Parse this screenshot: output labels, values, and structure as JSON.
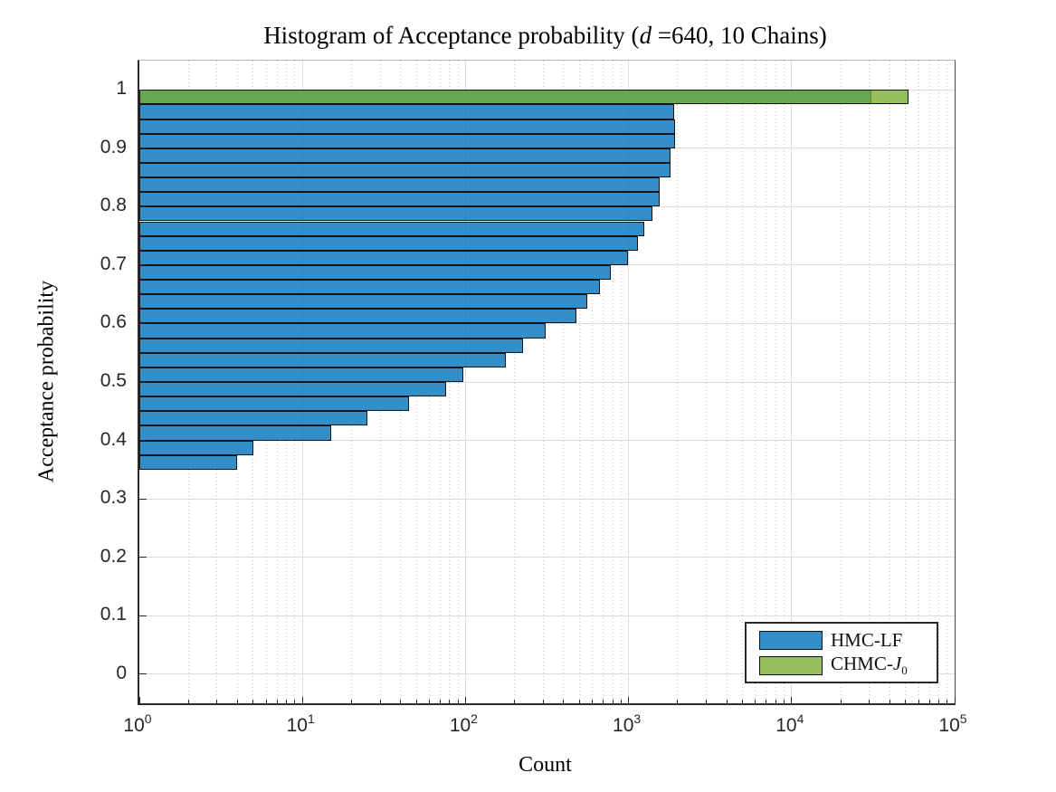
{
  "title": {
    "prefix": "Histogram of Acceptance probability (",
    "variable": "d",
    "suffix": " =640, 10 Chains)"
  },
  "axes": {
    "xlabel": "Count",
    "ylabel": "Acceptance probability",
    "x_tick_labels": [
      {
        "base": "10",
        "exponent": "0"
      },
      {
        "base": "10",
        "exponent": "1"
      },
      {
        "base": "10",
        "exponent": "2"
      },
      {
        "base": "10",
        "exponent": "3"
      },
      {
        "base": "10",
        "exponent": "4"
      },
      {
        "base": "10",
        "exponent": "5"
      }
    ],
    "y_tick_labels": [
      "0",
      "0.1",
      "0.2",
      "0.3",
      "0.4",
      "0.5",
      "0.6",
      "0.7",
      "0.8",
      "0.9",
      "1"
    ]
  },
  "legend": {
    "entry1_label": "HMC-LF",
    "entry2_prefix": "CHMC-",
    "entry2_variable": "J",
    "entry2_subscript": "0",
    "entry1_color": "rgba(0,114,189,0.80)",
    "entry2_color": "rgba(119,172,48,0.78)"
  },
  "chart_data": {
    "type": "bar",
    "orientation": "horizontal",
    "title": "Histogram of Acceptance probability (d =640, 10 Chains)",
    "xlabel": "Count",
    "ylabel": "Acceptance probability",
    "x_scale": "log10",
    "xlim": [
      1,
      100000
    ],
    "ylim": [
      -0.05,
      1.05
    ],
    "bin_width": 0.025,
    "grid": true,
    "minor_grid_x_dotted": true,
    "legend_position": "southeast",
    "x_major_ticks": [
      1,
      10,
      100,
      1000,
      10000,
      100000
    ],
    "y_major_ticks": [
      0,
      0.1,
      0.2,
      0.3,
      0.4,
      0.5,
      0.6,
      0.7,
      0.8,
      0.9,
      1
    ],
    "series": [
      {
        "name": "HMC-LF",
        "fill": "rgba(0,114,189,0.80)",
        "edge": "#141414",
        "bins": [
          {
            "y0": 0.975,
            "count": 31000
          },
          {
            "y0": 0.95,
            "count": 1900
          },
          {
            "y0": 0.925,
            "count": 1920
          },
          {
            "y0": 0.9,
            "count": 1920
          },
          {
            "y0": 0.875,
            "count": 1800
          },
          {
            "y0": 0.85,
            "count": 1800
          },
          {
            "y0": 0.825,
            "count": 1550
          },
          {
            "y0": 0.8,
            "count": 1550
          },
          {
            "y0": 0.775,
            "count": 1410
          },
          {
            "y0": 0.75,
            "count": 1250
          },
          {
            "y0": 0.725,
            "count": 1140
          },
          {
            "y0": 0.7,
            "count": 990
          },
          {
            "y0": 0.675,
            "count": 780
          },
          {
            "y0": 0.65,
            "count": 670
          },
          {
            "y0": 0.625,
            "count": 560
          },
          {
            "y0": 0.6,
            "count": 480
          },
          {
            "y0": 0.575,
            "count": 310
          },
          {
            "y0": 0.55,
            "count": 225
          },
          {
            "y0": 0.525,
            "count": 176
          },
          {
            "y0": 0.5,
            "count": 97
          },
          {
            "y0": 0.475,
            "count": 76
          },
          {
            "y0": 0.45,
            "count": 45
          },
          {
            "y0": 0.425,
            "count": 25
          },
          {
            "y0": 0.4,
            "count": 15
          },
          {
            "y0": 0.375,
            "count": 5
          },
          {
            "y0": 0.35,
            "count": 4
          }
        ]
      },
      {
        "name": "CHMC-J0",
        "fill": "rgba(119,172,48,0.78)",
        "edge": "#141414",
        "bins": [
          {
            "y0": 0.975,
            "count": 52000
          }
        ]
      }
    ]
  }
}
